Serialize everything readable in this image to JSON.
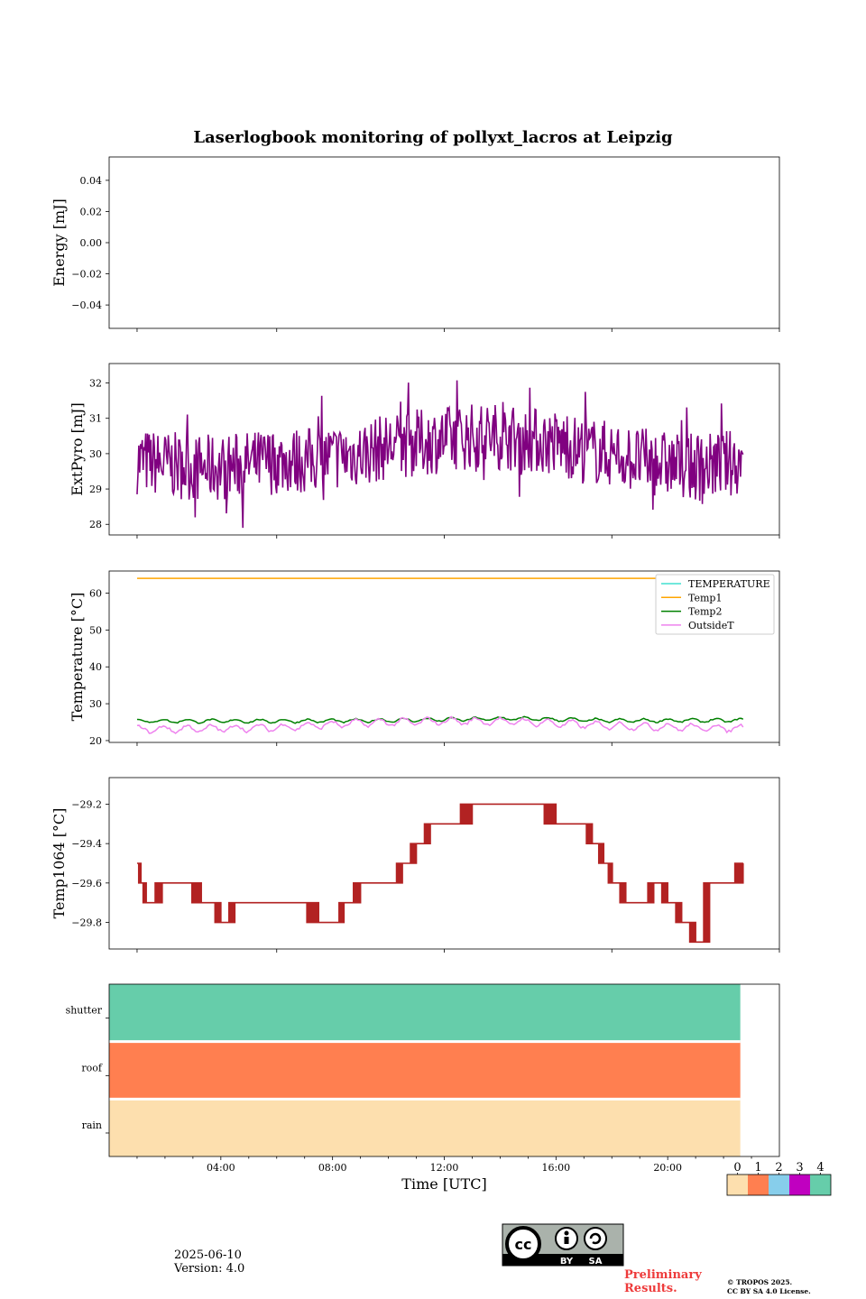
{
  "title": "Laserlogbook monitoring of pollyxt_lacros at Leipzig",
  "chart_data": [
    {
      "type": "line",
      "ylabel": "Energy [mJ]",
      "ylim": [
        -0.055,
        0.055
      ],
      "yticks": [
        0.04,
        0.02,
        0.0,
        -0.02,
        -0.04
      ],
      "ytick_labels": [
        "0.04",
        "0.02",
        "0.00",
        "−0.02",
        "−0.04"
      ],
      "series": []
    },
    {
      "type": "line",
      "ylabel": "ExtPyro [mJ]",
      "ylim": [
        27.7,
        32.55
      ],
      "yticks": [
        28,
        29,
        30,
        31,
        32
      ],
      "ytick_labels": [
        "28",
        "29",
        "30",
        "31",
        "32"
      ],
      "series": [
        {
          "color": "#800080",
          "x_hours": [
            1.0,
            2.0,
            3.0,
            4.0,
            5.0,
            6.0,
            7.0,
            8.0,
            9.0,
            10.0,
            11.0,
            12.0,
            13.0,
            14.0,
            15.0,
            16.0,
            17.0,
            18.0,
            19.0,
            20.0,
            21.0,
            22.0,
            22.7
          ],
          "values": [
            29.8,
            29.7,
            29.6,
            29.6,
            29.7,
            29.8,
            29.8,
            29.9,
            30.0,
            30.2,
            30.3,
            30.4,
            30.5,
            30.5,
            30.4,
            30.3,
            30.1,
            30.0,
            29.8,
            29.7,
            29.6,
            29.7,
            29.8
          ],
          "range": [
            27.9,
            32.3
          ]
        }
      ]
    },
    {
      "type": "line",
      "ylabel": "Temperature [°C]",
      "ylim": [
        19.5,
        66
      ],
      "yticks": [
        20,
        30,
        40,
        50,
        60
      ],
      "ytick_labels": [
        "20",
        "30",
        "40",
        "50",
        "60"
      ],
      "legend_position": "upper right",
      "series": [
        {
          "name": "TEMPERATURE",
          "color": "#40e0d0",
          "x_hours": [],
          "values": []
        },
        {
          "name": "Temp1",
          "color": "#ffa500",
          "x_hours": [
            1.0,
            22.7
          ],
          "values": [
            64,
            64
          ]
        },
        {
          "name": "Temp2",
          "color": "#008000",
          "x_hours": [
            1.0,
            6.0,
            9.0,
            12.0,
            14.5,
            18.0,
            22.7
          ],
          "values": [
            25.3,
            25.3,
            25.4,
            25.7,
            26.0,
            25.4,
            25.5
          ]
        },
        {
          "name": "OutsideT",
          "color": "#ee82ee",
          "x_hours": [
            1.0,
            6.0,
            9.0,
            12.0,
            14.5,
            18.0,
            22.7
          ],
          "values": [
            23.0,
            23.5,
            24.8,
            25.3,
            25.2,
            24.0,
            23.3
          ]
        }
      ]
    },
    {
      "type": "line",
      "ylabel": "Temp1064 [°C]",
      "ylim": [
        -29.935,
        -29.065
      ],
      "yticks": [
        -29.2,
        -29.4,
        -29.6,
        -29.8
      ],
      "ytick_labels": [
        "−29.2",
        "−29.4",
        "−29.6",
        "−29.8"
      ],
      "series": [
        {
          "color": "#b22222",
          "x_hours": [
            1.0,
            1.1,
            1.3,
            1.9,
            2.5,
            3.3,
            3.5,
            4.0,
            4.5,
            5.0,
            6.5,
            7.5,
            8.0,
            8.4,
            9.0,
            10.0,
            10.5,
            11.0,
            11.5,
            12.0,
            13.0,
            14.0,
            14.5,
            15.0,
            16.0,
            16.8,
            17.3,
            17.7,
            18.0,
            18.5,
            19.0,
            19.5,
            20.0,
            20.5,
            21.0,
            21.5,
            22.0,
            22.7
          ],
          "values": [
            -29.5,
            -29.6,
            -29.7,
            -29.6,
            -29.6,
            -29.7,
            -29.7,
            -29.8,
            -29.7,
            -29.7,
            -29.7,
            -29.8,
            -29.8,
            -29.7,
            -29.6,
            -29.6,
            -29.5,
            -29.4,
            -29.3,
            -29.3,
            -29.2,
            -29.2,
            -29.2,
            -29.2,
            -29.3,
            -29.3,
            -29.4,
            -29.5,
            -29.6,
            -29.7,
            -29.7,
            -29.6,
            -29.7,
            -29.8,
            -29.9,
            -29.6,
            -29.6,
            -29.5
          ]
        }
      ]
    },
    {
      "type": "heatmap",
      "rows": [
        "shutter",
        "roof",
        "rain"
      ],
      "row_values": [
        4,
        1,
        0
      ],
      "x_end_hours": 22.6,
      "xlabel": "Time [UTC]",
      "xticks_hours": [
        4,
        8,
        12,
        16,
        20
      ],
      "xtick_labels": [
        "04:00",
        "08:00",
        "12:00",
        "16:00",
        "20:00"
      ],
      "colorbar": {
        "ticks": [
          "0",
          "1",
          "2",
          "3",
          "4"
        ],
        "colors": [
          "#fddfae",
          "#ff7f50",
          "#87ceeb",
          "#c000c0",
          "#66cdaa"
        ]
      }
    }
  ],
  "x_range_hours": [
    0,
    24
  ],
  "footer": {
    "date": "2025-06-10",
    "version": "Version: 4.0",
    "preliminary_line1": "Preliminary",
    "preliminary_line2": "Results.",
    "copyright_line1": "© TROPOS 2025.",
    "copyright_line2": "CC BY SA 4.0 License.",
    "license_badge": {
      "by": "BY",
      "sa": "SA"
    }
  }
}
